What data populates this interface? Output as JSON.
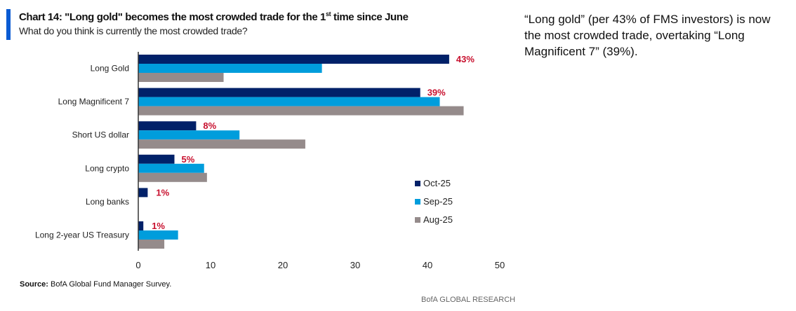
{
  "header": {
    "title_pre": "Chart 14: \"Long gold\" becomes the most crowded trade for the 1",
    "title_sup": "st",
    "title_post": " time since June",
    "subtitle": "What do you think is currently the most crowded trade?"
  },
  "note": "“Long gold” (per 43% of FMS investors) is now the most crowded trade, overtaking “Long Magnificent 7” (39%).",
  "footer": {
    "source_label": "Source:",
    "source_text": " BofA Global Fund Manager Survey.",
    "brand": "BofA GLOBAL RESEARCH"
  },
  "chart_data": {
    "type": "bar",
    "orientation": "horizontal",
    "categories": [
      "Long Gold",
      "Long Magnificent 7",
      "Short US dollar",
      "Long crypto",
      "Long banks",
      "Long 2-year US Treasury"
    ],
    "series": [
      {
        "name": "Oct-25",
        "color": "#012169",
        "values": [
          43,
          39,
          8,
          5,
          1.3,
          0.7
        ]
      },
      {
        "name": "Sep-25",
        "color": "#009ddc",
        "values": [
          25.4,
          41.7,
          14,
          9.1,
          0,
          5.5
        ]
      },
      {
        "name": "Aug-25",
        "color": "#958b8b",
        "values": [
          11.8,
          45,
          23.1,
          9.5,
          0,
          3.6
        ]
      }
    ],
    "data_labels": [
      "43%",
      "39%",
      "8%",
      "5%",
      "1%",
      "1%"
    ],
    "data_label_color": "#c8102e",
    "xlim": [
      0,
      50
    ],
    "xticks": [
      0,
      10,
      20,
      30,
      40,
      50
    ],
    "grid": false,
    "legend": "right-bottom"
  }
}
